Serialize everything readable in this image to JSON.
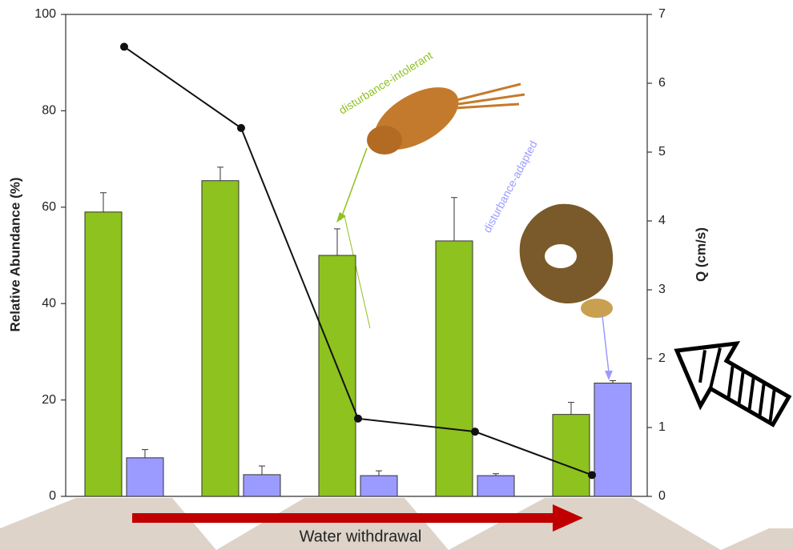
{
  "chart_data": {
    "type": "bar",
    "y_label": "Relative Abundance (%)",
    "y2_label": "Q (cm/s)",
    "annotation": "Water withdrawal",
    "categories": [
      null,
      null,
      null,
      null,
      null
    ],
    "series": [
      {
        "name": "disturbance-intolerant",
        "color": "#8dc21f",
        "values": [
          59,
          65.5,
          50,
          53,
          17
        ],
        "errors": [
          4,
          2.8,
          5.5,
          9,
          2.5
        ]
      },
      {
        "name": "disturbance-adapted",
        "color": "#9b9bff",
        "values": [
          8,
          4.5,
          4.3,
          4.3,
          23.5
        ],
        "errors": [
          1.7,
          1.8,
          1,
          0.4,
          0.5
        ]
      },
      {
        "type": "line",
        "axis": "y2",
        "color": "#111111",
        "values": [
          6.53,
          5.35,
          1.13,
          0.94,
          0.31
        ]
      }
    ],
    "ylim": [
      0,
      100
    ],
    "yticks": [
      0,
      20,
      40,
      60,
      80,
      100
    ],
    "y2lim": [
      0,
      7
    ],
    "y2ticks": [
      0,
      1,
      2,
      3,
      4,
      5,
      6,
      7
    ]
  }
}
